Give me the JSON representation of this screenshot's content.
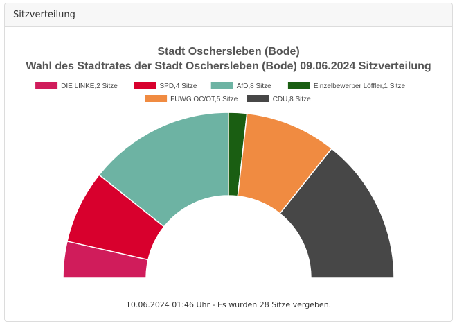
{
  "card": {
    "header": "Sitzverteilung",
    "footer": "10.06.2024 01:46 Uhr - Es wurden 28 Sitze vergeben."
  },
  "chart_data": {
    "type": "pie",
    "variant": "semicircle-donut",
    "title": "Stadt Oschersleben (Bode)",
    "subtitle": "Wahl des Stadtrates der Stadt Oschersleben (Bode) 09.06.2024 Sitzverteilung",
    "total_seats": 28,
    "legend_position": "top",
    "series": [
      {
        "name": "DIE LINKE",
        "legend": "DIE LINKE,2 Sitze",
        "value": 2,
        "color": "#d01c5b"
      },
      {
        "name": "SPD",
        "legend": "SPD,4 Sitze",
        "value": 4,
        "color": "#d8002d"
      },
      {
        "name": "AfD",
        "legend": "AfD,8 Sitze",
        "value": 8,
        "color": "#6db3a3"
      },
      {
        "name": "Einzelbewerber Löffler",
        "legend": "Einzelbewerber Löffler,1 Sitze",
        "value": 1,
        "color": "#1a5e12"
      },
      {
        "name": "FUWG OC/OT",
        "legend": "FUWG OC/OT,5 Sitze",
        "value": 5,
        "color": "#f08b41"
      },
      {
        "name": "CDU",
        "legend": "CDU,8 Sitze",
        "value": 8,
        "color": "#474747"
      }
    ]
  }
}
